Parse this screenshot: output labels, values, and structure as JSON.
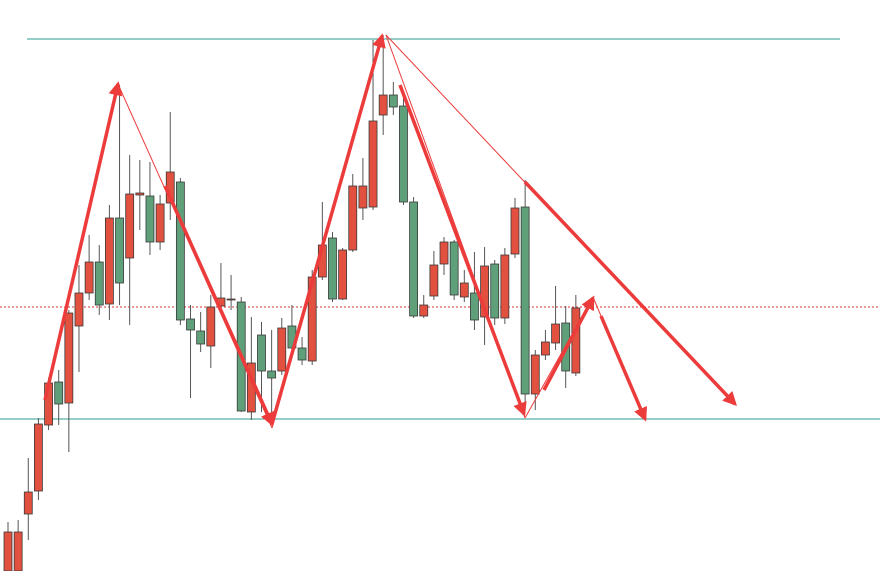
{
  "chart_data": {
    "type": "candlestick",
    "ylim": [
      0,
      571
    ],
    "up_color": "#e2513f",
    "down_color": "#5f9f79",
    "open": [
      0,
      0,
      57,
      80,
      146,
      189,
      168,
      245,
      278,
      309,
      267,
      353,
      313,
      376,
      375,
      329,
      368,
      389,
      252,
      240,
      225,
      265,
      271,
      269,
      159,
      236,
      200,
      200,
      245,
      223,
      210,
      294,
      333,
      272,
      321,
      363,
      364,
      456,
      476,
      465,
      369,
      255,
      275,
      307,
      329,
      274,
      278,
      254,
      307,
      253,
      317,
      364,
      177,
      216,
      228,
      248,
      198
    ],
    "high": [
      49,
      51,
      113,
      153,
      193,
      201,
      261,
      306,
      336,
      326,
      366,
      486,
      416,
      411,
      409,
      376,
      459,
      393,
      266,
      259,
      276,
      308,
      296,
      274,
      254,
      249,
      241,
      253,
      266,
      234,
      301,
      369,
      339,
      323,
      397,
      413,
      531,
      536,
      489,
      478,
      374,
      276,
      320,
      334,
      331,
      301,
      319,
      324,
      311,
      323,
      373,
      391,
      221,
      241,
      285,
      265,
      276
    ],
    "low": [
      0,
      0,
      31,
      71,
      141,
      146,
      119,
      199,
      271,
      256,
      251,
      266,
      246,
      341,
      316,
      321,
      351,
      246,
      173,
      219,
      203,
      261,
      261,
      159,
      151,
      159,
      151,
      196,
      219,
      206,
      206,
      291,
      269,
      271,
      319,
      351,
      361,
      436,
      456,
      366,
      253,
      253,
      271,
      296,
      271,
      269,
      241,
      226,
      246,
      247,
      313,
      166,
      161,
      211,
      221,
      183,
      195
    ],
    "close": [
      39,
      39,
      79,
      147,
      188,
      167,
      258,
      278,
      309,
      266,
      353,
      288,
      377,
      378,
      329,
      367,
      399,
      251,
      241,
      227,
      264,
      273,
      272,
      160,
      208,
      200,
      193,
      243,
      223,
      211,
      294,
      326,
      272,
      321,
      385,
      385,
      450,
      476,
      464,
      369,
      255,
      266,
      306,
      329,
      276,
      288,
      251,
      305,
      253,
      316,
      363,
      177,
      216,
      229,
      247,
      200,
      263
    ]
  }
}
